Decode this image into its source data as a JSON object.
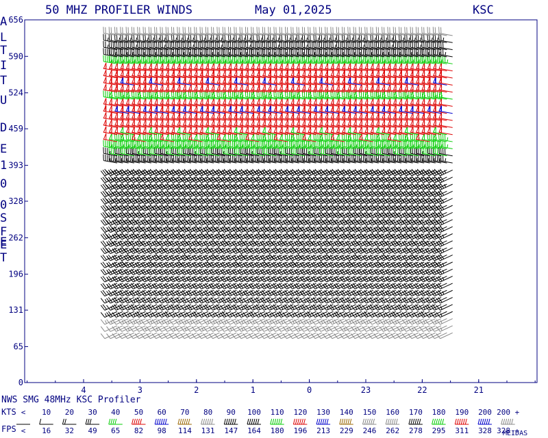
{
  "header": {
    "title": "50 MHZ PROFILER WINDS",
    "date": "May 01,2025",
    "station": "KSC"
  },
  "footer": {
    "caption": "NWS SMG 48MHz KSC Profiler",
    "credit": "MEIDAS"
  },
  "legend": {
    "kts_label": "KTS",
    "fps_label": "FPS",
    "kts_values": [
      "<",
      "10",
      "20",
      "30",
      "40",
      "50",
      "60",
      "70",
      "80",
      "90",
      "100",
      "110",
      "120",
      "130",
      "140",
      "150",
      "160",
      "170",
      "180",
      "190",
      "200",
      "200 +"
    ],
    "fps_values": [
      "<",
      "16",
      "32",
      "49",
      "65",
      "82",
      "98",
      "114",
      "131",
      "147",
      "164",
      "180",
      "196",
      "213",
      "229",
      "246",
      "262",
      "278",
      "295",
      "311",
      "328",
      "328 +"
    ],
    "colors": [
      "#000000",
      "#000000",
      "#000000",
      "#000000",
      "#00cc00",
      "#dd0000",
      "#0000cc",
      "#996600",
      "#888888",
      "#000000",
      "#000000",
      "#00cc00",
      "#dd0000",
      "#0000cc",
      "#996600",
      "#888888",
      "#888888",
      "#000000",
      "#00cc00",
      "#dd0000",
      "#0000cc",
      "#888888"
    ]
  },
  "chart_data": {
    "type": "wind-barb-time-height",
    "title": "50 MHZ PROFILER WINDS",
    "ylabel": "ALTITUDE 100S FEET",
    "y_ticks": [
      0,
      65,
      131,
      196,
      262,
      328,
      393,
      459,
      524,
      590,
      656
    ],
    "ylim": [
      0,
      656
    ],
    "x_tick_labels": [
      "4",
      "3",
      "2",
      "1",
      "0",
      "23",
      "22",
      "21"
    ],
    "x_axis": "hour (UTC), time decreasing to the right",
    "xlim": [
      4.95,
      20.4
    ],
    "grid": false,
    "legend_position": "bottom",
    "data_span_hours": [
      3.55,
      21.35
    ],
    "approx_speed_kts_by_altitude": [
      {
        "altitude": 90,
        "speed": 10
      },
      {
        "altitude": 120,
        "speed": 15
      },
      {
        "altitude": 200,
        "speed": 25
      },
      {
        "altitude": 330,
        "speed": 30
      },
      {
        "altitude": 400,
        "speed": 35
      },
      {
        "altitude": 425,
        "speed": 45
      },
      {
        "altitude": 460,
        "speed": 55
      },
      {
        "altitude": 490,
        "speed": 60
      },
      {
        "altitude": 510,
        "speed": 45
      },
      {
        "altitude": 530,
        "speed": 60
      },
      {
        "altitude": 560,
        "speed": 55
      },
      {
        "altitude": 600,
        "speed": 30
      },
      {
        "altitude": 640,
        "speed": 15
      }
    ]
  }
}
